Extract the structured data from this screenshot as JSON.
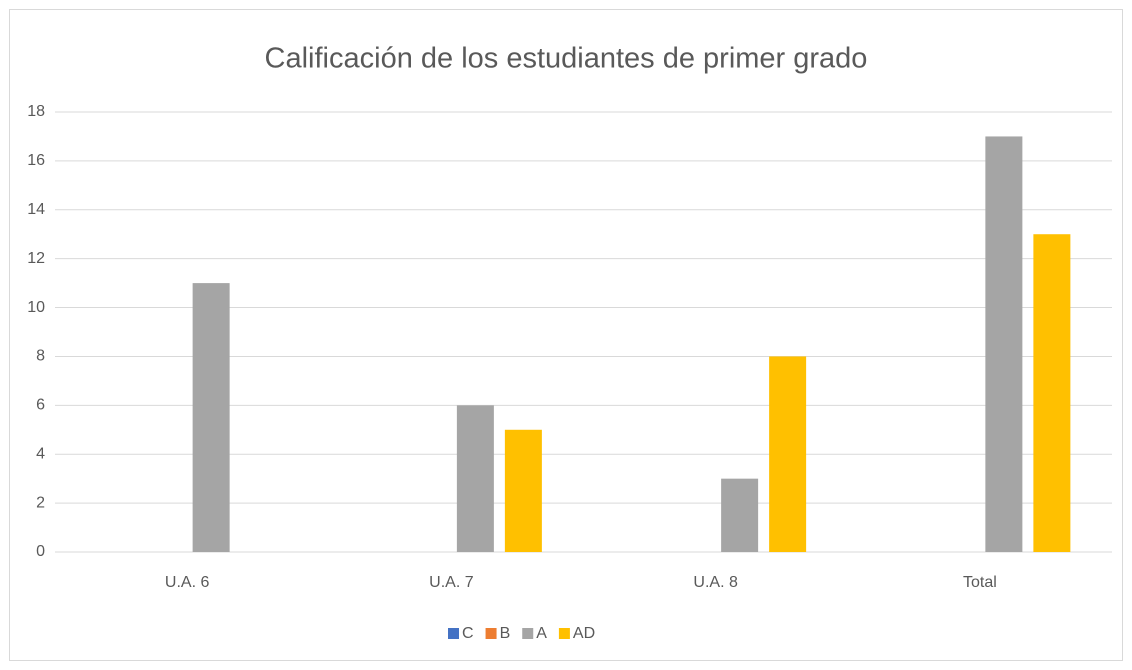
{
  "chart_data": {
    "type": "bar",
    "title": "Calificación de los estudiantes de primer grado",
    "categories": [
      "U.A. 6",
      "U.A. 7",
      "U.A. 8",
      "Total"
    ],
    "series": [
      {
        "name": "C",
        "color": "#4472c4",
        "values": [
          0,
          0,
          0,
          0
        ]
      },
      {
        "name": "B",
        "color": "#ed7d31",
        "values": [
          0,
          0,
          0,
          0
        ]
      },
      {
        "name": "A",
        "color": "#a5a5a5",
        "values": [
          11,
          6,
          3,
          17
        ]
      },
      {
        "name": "AD",
        "color": "#ffc000",
        "values": [
          0,
          5,
          8,
          13
        ]
      }
    ],
    "ylim": [
      0,
      18
    ],
    "yticks": [
      0,
      2,
      4,
      6,
      8,
      10,
      12,
      14,
      16,
      18
    ],
    "grid": true,
    "legend": "bottom"
  }
}
